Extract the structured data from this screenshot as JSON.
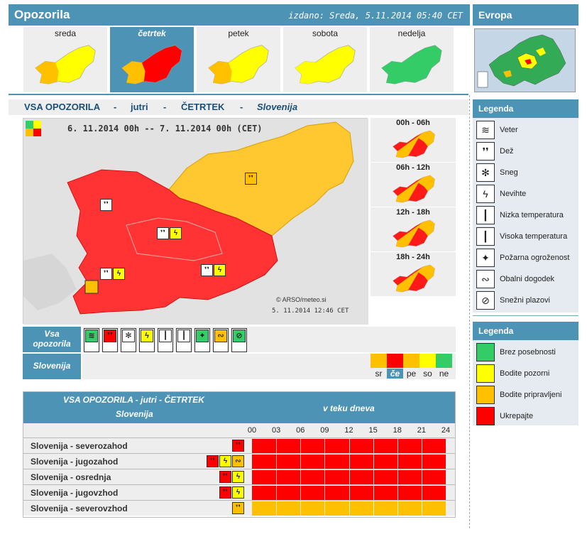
{
  "header": {
    "title": "Opozorila",
    "issued": "izdano: Sreda, 5.11.2014 05:40 CET",
    "europe_title": "Evropa"
  },
  "days": [
    {
      "label": "sreda",
      "color": "#ffff00",
      "accent": "#ffc000",
      "selected": false
    },
    {
      "label": "četrtek",
      "color": "#ff0000",
      "accent": "#ffc000",
      "selected": true
    },
    {
      "label": "petek",
      "color": "#ffff00",
      "accent": "#ffc000",
      "selected": false
    },
    {
      "label": "sobota",
      "color": "#ffff00",
      "accent": "#ffff00",
      "selected": false
    },
    {
      "label": "nedelja",
      "color": "#33cc66",
      "accent": "#33cc66",
      "selected": false
    }
  ],
  "subtitle": {
    "a": "VSA OPOZORILA",
    "sep1": "-",
    "b": "jutri",
    "sep2": "-",
    "c": "ČETRTEK",
    "sep3": "-",
    "d": "Slovenija"
  },
  "map": {
    "period": "6. 11.2014  00h  --  7. 11.2014  00h     (CET)",
    "copyright": "© ARSO/meteo.si",
    "stamp": "5. 11.2014  12:46 CET"
  },
  "time_slots": [
    {
      "label": "00h - 06h"
    },
    {
      "label": "06h - 12h"
    },
    {
      "label": "12h - 18h"
    },
    {
      "label": "18h - 24h"
    }
  ],
  "icon_row": {
    "label_line1": "Vsa",
    "label_line2": "opozorila",
    "icons": [
      {
        "name": "wind-icon",
        "color": "#33cc66",
        "glyph": "≋"
      },
      {
        "name": "rain-icon",
        "color": "#ff0000",
        "glyph": "❜❜"
      },
      {
        "name": "snow-icon",
        "color": "#ffffff",
        "glyph": "✻"
      },
      {
        "name": "thunderstorm-icon",
        "color": "#ffff00",
        "glyph": "ϟ"
      },
      {
        "name": "low-temperature-icon",
        "color": "#ffffff",
        "glyph": "┃"
      },
      {
        "name": "high-temperature-icon",
        "color": "#ffffff",
        "glyph": "┃"
      },
      {
        "name": "fire-danger-icon",
        "color": "#33cc66",
        "glyph": "✦"
      },
      {
        "name": "coastal-event-icon",
        "color": "#ffc000",
        "glyph": "∾"
      },
      {
        "name": "avalanche-icon",
        "color": "#33cc66",
        "glyph": "⊘"
      }
    ]
  },
  "slo_row": {
    "label": "Slovenija",
    "days": [
      {
        "label": "sr",
        "color": "#ffc000",
        "selected": false
      },
      {
        "label": "če",
        "color": "#ff0000",
        "selected": true
      },
      {
        "label": "pe",
        "color": "#ffc000",
        "selected": false
      },
      {
        "label": "so",
        "color": "#ffff00",
        "selected": false
      },
      {
        "label": "ne",
        "color": "#33cc66",
        "selected": false
      }
    ]
  },
  "table": {
    "title": "VSA OPOZORILA - jutri - ČETRTEK",
    "region": "Slovenija",
    "during": "v teku dneva",
    "hours": [
      "00",
      "03",
      "06",
      "09",
      "12",
      "15",
      "18",
      "21",
      "24"
    ],
    "rows": [
      {
        "name": "Slovenija - severozahod",
        "color": "#ff0000",
        "icons": [
          {
            "color": "#ff0000",
            "glyph": "❜❜"
          }
        ]
      },
      {
        "name": "Slovenija - jugozahod",
        "color": "#ff0000",
        "icons": [
          {
            "color": "#ff0000",
            "glyph": "❜❜"
          },
          {
            "color": "#ffff00",
            "glyph": "ϟ"
          },
          {
            "color": "#ffc000",
            "glyph": "∾"
          }
        ]
      },
      {
        "name": "Slovenija - osrednja",
        "color": "#ff0000",
        "icons": [
          {
            "color": "#ff0000",
            "glyph": "❜❜"
          },
          {
            "color": "#ffff00",
            "glyph": "ϟ"
          }
        ]
      },
      {
        "name": "Slovenija - jugovzhod",
        "color": "#ff0000",
        "icons": [
          {
            "color": "#ff0000",
            "glyph": "❜❜"
          },
          {
            "color": "#ffff00",
            "glyph": "ϟ"
          }
        ]
      },
      {
        "name": "Slovenija - severovzhod",
        "color": "#ffc000",
        "icons": [
          {
            "color": "#ffc000",
            "glyph": "❜❜"
          }
        ]
      }
    ]
  },
  "legend1": {
    "title": "Legenda",
    "items": [
      {
        "label": "Veter",
        "glyph": "≋",
        "name": "wind-icon"
      },
      {
        "label": "Dež",
        "glyph": "❜❜",
        "name": "rain-icon"
      },
      {
        "label": "Sneg",
        "glyph": "✻",
        "name": "snow-icon"
      },
      {
        "label": "Nevihte",
        "glyph": "ϟ",
        "name": "thunderstorm-icon"
      },
      {
        "label": "Nizka temperatura",
        "glyph": "┃",
        "name": "low-temperature-icon"
      },
      {
        "label": "Visoka temperatura",
        "glyph": "┃",
        "name": "high-temperature-icon"
      },
      {
        "label": "Požarna ogroženost",
        "glyph": "✦",
        "name": "fire-danger-icon"
      },
      {
        "label": "Obalni dogodek",
        "glyph": "∾",
        "name": "coastal-event-icon"
      },
      {
        "label": "Snežni plazovi",
        "glyph": "⊘",
        "name": "avalanche-icon"
      }
    ]
  },
  "legend2": {
    "title": "Legenda",
    "items": [
      {
        "label": "Brez posebnosti",
        "color": "#33cc66"
      },
      {
        "label": "Bodite pozorni",
        "color": "#ffff00"
      },
      {
        "label": "Bodite pripravljeni",
        "color": "#ffc000"
      },
      {
        "label": "Ukrepajte",
        "color": "#ff0000"
      }
    ]
  }
}
